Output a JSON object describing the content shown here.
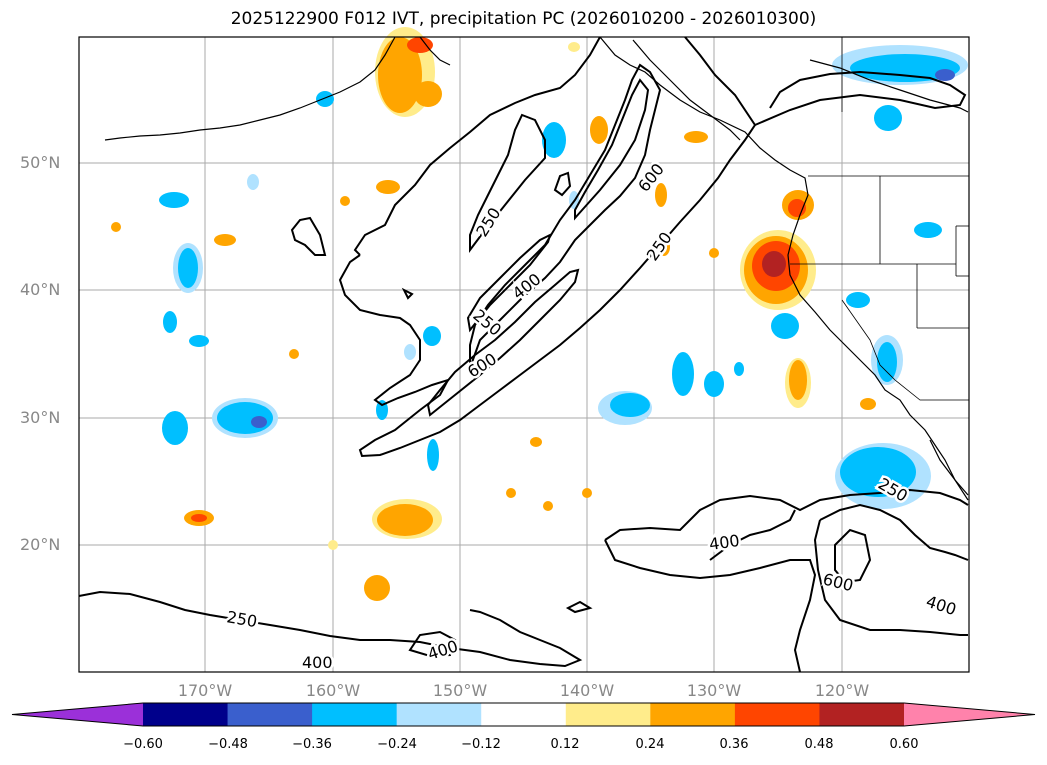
{
  "title": "2025122900 F012 IVT, precipitation PC (2026010200 - 2026010300)",
  "lat_labels": [
    "50°N",
    "40°N",
    "30°N",
    "20°N"
  ],
  "lon_labels": [
    "170°W",
    "160°W",
    "150°W",
    "140°W",
    "130°W",
    "120°W"
  ],
  "contour_levels": [
    "250",
    "400",
    "600"
  ],
  "contour_labels": [
    {
      "text": "250",
      "level": 250
    },
    {
      "text": "250",
      "level": 250
    },
    {
      "text": "250",
      "level": 250
    },
    {
      "text": "250",
      "level": 250
    },
    {
      "text": "250",
      "level": 250
    },
    {
      "text": "400",
      "level": 400
    },
    {
      "text": "400",
      "level": 400
    },
    {
      "text": "400",
      "level": 400
    },
    {
      "text": "400",
      "level": 400
    },
    {
      "text": "600",
      "level": 600
    },
    {
      "text": "600",
      "level": 600
    },
    {
      "text": "600",
      "level": 600
    }
  ],
  "colorbar": {
    "ticks": [
      "−0.60",
      "−0.48",
      "−0.36",
      "−0.24",
      "−0.12",
      "0.12",
      "0.24",
      "0.36",
      "0.48",
      "0.60"
    ],
    "colors": [
      "#9b30d9",
      "#00008b",
      "#3a5fcd",
      "#00bfff",
      "#b0e2ff",
      "#ffffff",
      "#ffec8b",
      "#ffa500",
      "#ff4500",
      "#b22222",
      "#ff82ab"
    ]
  }
}
